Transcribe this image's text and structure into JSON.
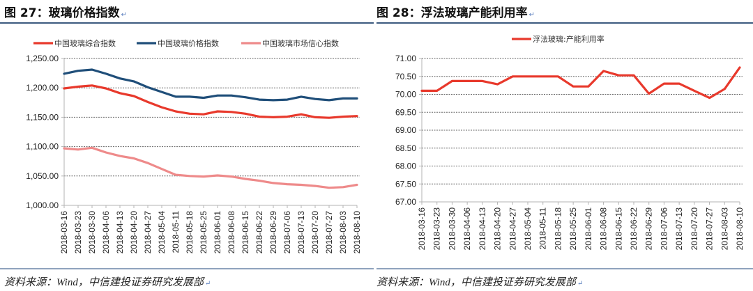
{
  "left_panel": {
    "title": "图 27：玻璃价格指数",
    "source": "资料来源：Wind，中信建投证券研究发展部"
  },
  "right_panel": {
    "title": "图 28：浮法玻璃产能利用率",
    "source": "资料来源：Wind，中信建投证券研究发展部"
  },
  "colors": {
    "composite": "#e8392c",
    "price": "#1f4e79",
    "confidence": "#ee8a8a",
    "utilization": "#e8392c",
    "grid": "#666666",
    "axis": "#b3b3b3"
  },
  "chart_data": [
    {
      "type": "line",
      "title": "玻璃价格指数",
      "xlabel": "",
      "ylabel": "",
      "ylim": [
        1000,
        1250
      ],
      "yticks": [
        "1,000.00",
        "1,050.00",
        "1,100.00",
        "1,150.00",
        "1,200.00",
        "1,250.00"
      ],
      "grid": true,
      "legend_position": "top",
      "categories": [
        "2018-03-16",
        "2018-03-23",
        "2018-03-30",
        "2018-04-06",
        "2018-04-13",
        "2018-04-20",
        "2018-04-27",
        "2018-05-04",
        "2018-05-11",
        "2018-05-18",
        "2018-05-25",
        "2018-06-01",
        "2018-06-08",
        "2018-06-15",
        "2018-06-22",
        "2018-06-29",
        "2018-07-06",
        "2018-07-13",
        "2018-07-20",
        "2018-07-27",
        "2018-08-03",
        "2018-08-10"
      ],
      "series": [
        {
          "name": "中国玻璃综合指数",
          "values": [
            1199,
            1202,
            1204,
            1199,
            1191,
            1186,
            1176,
            1167,
            1160,
            1156,
            1155,
            1160,
            1159,
            1156,
            1151,
            1150,
            1151,
            1155,
            1150,
            1149,
            1151,
            1152
          ]
        },
        {
          "name": "中国玻璃价格指数",
          "values": [
            1224,
            1229,
            1231,
            1224,
            1216,
            1211,
            1201,
            1193,
            1185,
            1185,
            1183,
            1187,
            1187,
            1184,
            1180,
            1179,
            1180,
            1185,
            1181,
            1179,
            1182,
            1182
          ]
        },
        {
          "name": "中国玻璃市场信心指数",
          "values": [
            1097,
            1095,
            1098,
            1090,
            1084,
            1080,
            1072,
            1062,
            1052,
            1050,
            1049,
            1051,
            1049,
            1045,
            1042,
            1038,
            1036,
            1035,
            1033,
            1030,
            1031,
            1035
          ]
        }
      ]
    },
    {
      "type": "line",
      "title": "浮法玻璃产能利用率",
      "xlabel": "",
      "ylabel": "",
      "ylim": [
        67,
        71
      ],
      "yticks": [
        "67.00",
        "67.50",
        "68.00",
        "68.50",
        "69.00",
        "69.50",
        "70.00",
        "70.50",
        "71.00"
      ],
      "grid": true,
      "legend_position": "top",
      "categories": [
        "2018-03-16",
        "2018-03-23",
        "2018-03-30",
        "2018-04-06",
        "2018-04-13",
        "2018-04-20",
        "2018-04-27",
        "2018-05-04",
        "2018-05-11",
        "2018-05-18",
        "2018-05-25",
        "2018-06-01",
        "2018-06-08",
        "2018-06-15",
        "2018-06-22",
        "2018-06-29",
        "2018-07-06",
        "2018-07-13",
        "2018-07-20",
        "2018-07-27",
        "2018-08-03",
        "2018-08-10"
      ],
      "series": [
        {
          "name": "浮法玻璃:产能利用率",
          "values": [
            70.1,
            70.1,
            70.37,
            70.37,
            70.37,
            70.28,
            70.5,
            70.5,
            70.5,
            70.5,
            70.22,
            70.22,
            70.65,
            70.53,
            70.53,
            70.02,
            70.3,
            70.3,
            70.1,
            69.9,
            70.15,
            70.75
          ]
        }
      ]
    }
  ]
}
